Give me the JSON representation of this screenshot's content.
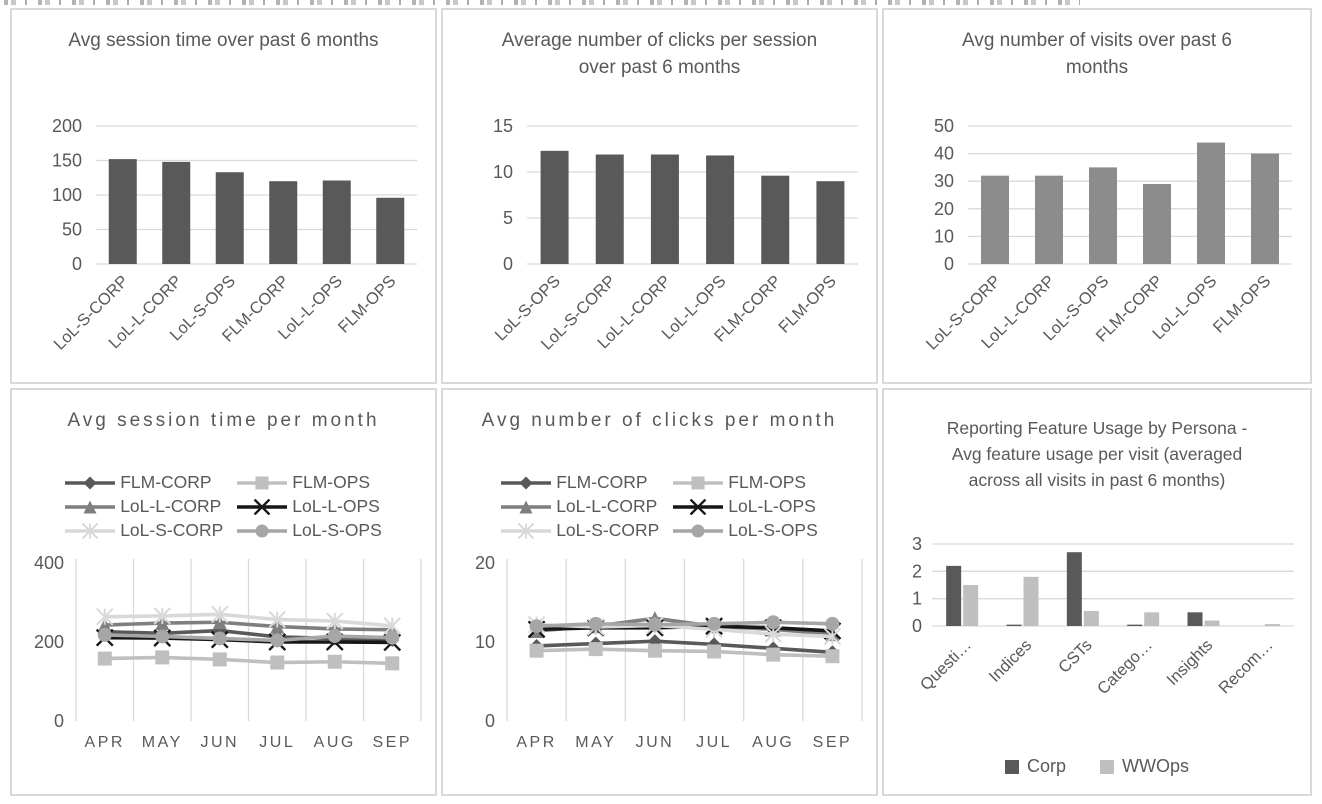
{
  "colors": {
    "text": "#595959",
    "gridline": "#d9d9d9",
    "panel_border": "#d9d9d9",
    "dark_bar": "#595959",
    "medium_bar": "#8c8c8c",
    "light_bar": "#bfbfbf"
  },
  "chart_data": [
    {
      "type": "bar",
      "title": "Avg session time over past 6 months",
      "categories": [
        "LoL-S-CORP",
        "LoL-L-CORP",
        "LoL-S-OPS",
        "FLM-CORP",
        "LoL-L-OPS",
        "FLM-OPS"
      ],
      "values": [
        152,
        148,
        133,
        120,
        121,
        96
      ],
      "ylim": [
        0,
        200
      ],
      "yticks": [
        0,
        50,
        100,
        150,
        200
      ],
      "bar_color": "#595959",
      "grid": "horizontal",
      "legend_position": "none"
    },
    {
      "type": "bar",
      "title": "Average number of clicks per session over past 6 months",
      "categories": [
        "LoL-S-OPS",
        "LoL-S-CORP",
        "LoL-L-CORP",
        "LoL-L-OPS",
        "FLM-CORP",
        "FLM-OPS"
      ],
      "values": [
        12.3,
        11.9,
        11.9,
        11.8,
        9.6,
        9.0
      ],
      "ylim": [
        0,
        15
      ],
      "yticks": [
        0,
        5,
        10,
        15
      ],
      "bar_color": "#595959",
      "grid": "horizontal",
      "legend_position": "none"
    },
    {
      "type": "bar",
      "title": "Avg number of visits over past 6 months",
      "categories": [
        "LoL-S-CORP",
        "LoL-L-CORP",
        "LoL-S-OPS",
        "FLM-CORP",
        "LoL-L-OPS",
        "FLM-OPS"
      ],
      "values": [
        32,
        32,
        35,
        29,
        44,
        40
      ],
      "ylim": [
        0,
        50
      ],
      "yticks": [
        0,
        10,
        20,
        30,
        40,
        50
      ],
      "bar_color": "#8c8c8c",
      "grid": "horizontal",
      "legend_position": "none"
    },
    {
      "type": "line",
      "title": "Avg session time per month",
      "x": [
        "APR",
        "MAY",
        "JUN",
        "JUL",
        "AUG",
        "SEP"
      ],
      "ylim": [
        0,
        400
      ],
      "yticks": [
        0,
        200,
        400
      ],
      "grid": "vertical",
      "legend_position": "top",
      "series": [
        {
          "name": "FLM-CORP",
          "marker": "diamond",
          "color": "#595959",
          "values": [
            226,
            222,
            229,
            213,
            209,
            205
          ]
        },
        {
          "name": "FLM-OPS",
          "marker": "square",
          "color": "#bfbfbf",
          "values": [
            158,
            161,
            156,
            148,
            150,
            146
          ]
        },
        {
          "name": "LoL-L-CORP",
          "marker": "triangle",
          "color": "#7f7f7f",
          "values": [
            243,
            248,
            250,
            239,
            233,
            231
          ]
        },
        {
          "name": "LoL-L-OPS",
          "marker": "x",
          "color": "#171717",
          "values": [
            211,
            210,
            206,
            200,
            200,
            199
          ]
        },
        {
          "name": "LoL-S-CORP",
          "marker": "asterisk",
          "color": "#d9d9d9",
          "values": [
            264,
            266,
            270,
            257,
            253,
            241
          ]
        },
        {
          "name": "LoL-S-OPS",
          "marker": "circle",
          "color": "#a6a6a6",
          "values": [
            218,
            214,
            209,
            204,
            215,
            211
          ]
        }
      ]
    },
    {
      "type": "line",
      "title": "Avg number of clicks per month",
      "x": [
        "APR",
        "MAY",
        "JUN",
        "JUL",
        "AUG",
        "SEP"
      ],
      "ylim": [
        0,
        20
      ],
      "yticks": [
        0,
        10,
        20
      ],
      "grid": "vertical",
      "legend_position": "top",
      "series": [
        {
          "name": "FLM-CORP",
          "marker": "diamond",
          "color": "#595959",
          "values": [
            9.5,
            9.8,
            10.1,
            9.7,
            9.2,
            8.7
          ]
        },
        {
          "name": "FLM-OPS",
          "marker": "square",
          "color": "#bfbfbf",
          "values": [
            8.9,
            9.1,
            8.9,
            8.8,
            8.4,
            8.2
          ]
        },
        {
          "name": "LoL-L-CORP",
          "marker": "triangle",
          "color": "#7f7f7f",
          "values": [
            11.4,
            12.0,
            13.0,
            12.0,
            11.6,
            11.0
          ]
        },
        {
          "name": "LoL-L-OPS",
          "marker": "x",
          "color": "#171717",
          "values": [
            11.6,
            11.8,
            11.8,
            12.0,
            11.8,
            11.4
          ]
        },
        {
          "name": "LoL-S-CORP",
          "marker": "asterisk",
          "color": "#d9d9d9",
          "values": [
            12.2,
            11.9,
            12.1,
            11.6,
            11.0,
            10.7
          ]
        },
        {
          "name": "LoL-S-OPS",
          "marker": "circle",
          "color": "#a6a6a6",
          "values": [
            12.0,
            12.3,
            12.2,
            12.3,
            12.5,
            12.3
          ]
        }
      ]
    },
    {
      "type": "bar",
      "title": "Reporting Feature Usage by Persona -  Avg feature usage per visit (averaged across all visits in past 6 months)",
      "categories": [
        "Questi…",
        "Indices",
        "CSTs",
        "Catego…",
        "Insights",
        "Recom…"
      ],
      "ylim": [
        0,
        3
      ],
      "yticks": [
        0,
        1,
        2,
        3
      ],
      "grid": "horizontal",
      "legend_position": "bottom",
      "series": [
        {
          "name": "Corp",
          "color": "#595959",
          "values": [
            2.2,
            0.05,
            2.7,
            0.05,
            0.5,
            0
          ]
        },
        {
          "name": "WWOps",
          "color": "#bfbfbf",
          "values": [
            1.5,
            1.8,
            0.55,
            0.5,
            0.2,
            0.07
          ]
        }
      ]
    }
  ]
}
